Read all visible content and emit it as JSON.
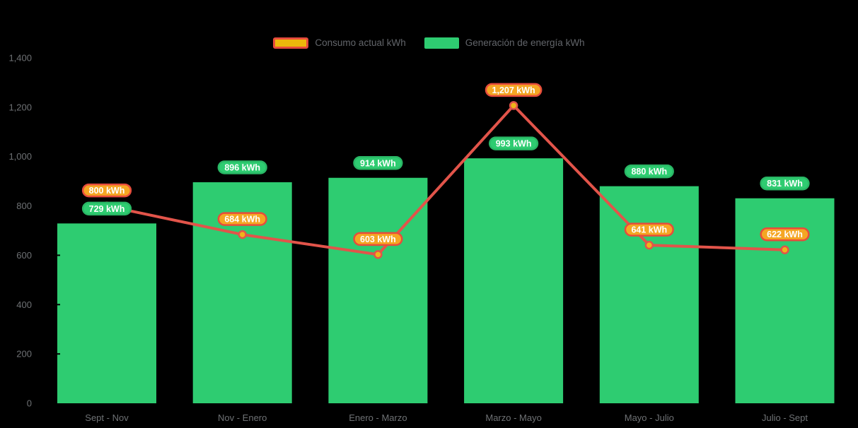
{
  "background": "#000000",
  "legend": {
    "position": "top-center",
    "items": [
      {
        "label": "Consumo actual kWh",
        "swatch_fill": "#EDB70B",
        "swatch_border": "#E74C3C",
        "series_type": "line"
      },
      {
        "label": "Generación de energía kWh",
        "swatch_fill": "#2ECC71",
        "swatch_border": "",
        "series_type": "bar"
      }
    ]
  },
  "chart_data": {
    "type": "combo-bar-line",
    "categories": [
      "Sept - Nov",
      "Nov - Enero",
      "Enero - Marzo",
      "Marzo - Mayo",
      "Mayo - Julio",
      "Julio - Sept"
    ],
    "series": [
      {
        "name": "Generación de energía kWh",
        "type": "bar",
        "values": [
          729,
          896,
          914,
          993,
          880,
          831
        ],
        "color": "#2ECC71",
        "label_bg": "#2ECC71",
        "label_border": "#29b765",
        "label_text_color": "#ffffff"
      },
      {
        "name": "Consumo actual kWh",
        "type": "line",
        "values": [
          800,
          684,
          603,
          1207,
          641,
          622
        ],
        "color": "#E2544A",
        "marker_fill": "#F0B41A",
        "marker_border": "#E2544A",
        "label_bg": "#F5A623",
        "label_border": "#E74C3C",
        "label_text_color": "#ffffff"
      }
    ],
    "value_suffix": " kWh",
    "data_labels_visible": true,
    "ylim": [
      0,
      1400
    ],
    "ytick_step": 200,
    "ytick_labels": [
      "0",
      "200",
      "400",
      "600",
      "800",
      "1,000",
      "1,200",
      "1,400"
    ],
    "grid": false,
    "legend_position": "top",
    "axis_text_color": "#6e7174"
  }
}
